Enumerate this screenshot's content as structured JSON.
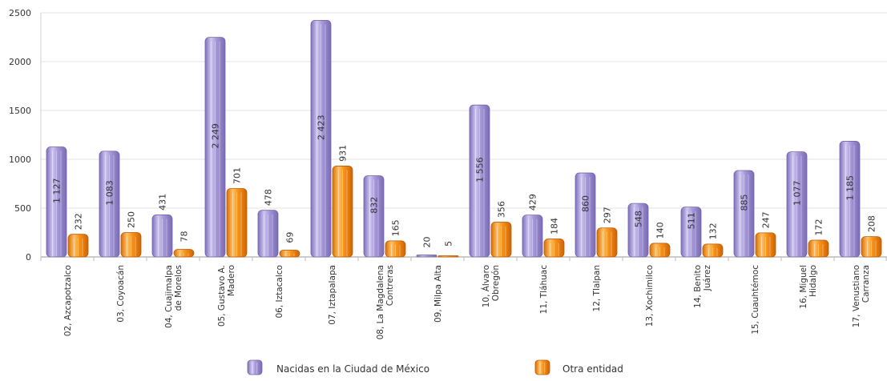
{
  "chart_data": {
    "type": "bar",
    "ylim": [
      0,
      2500
    ],
    "yticks": [
      "0",
      "500",
      "1000",
      "1500",
      "2000",
      "2500"
    ],
    "grid": true,
    "legend_position": "bottom",
    "categories": [
      [
        "02, Azcapotzalco"
      ],
      [
        "03, Coyoacán"
      ],
      [
        "04, Cuajimalpa",
        "de Morelos"
      ],
      [
        "05, Gustavo A.",
        "Madero"
      ],
      [
        "06, Iztacalco"
      ],
      [
        "07, Iztapalapa"
      ],
      [
        "08, La Magdalena",
        "Contreras"
      ],
      [
        "09, Milpa Alta"
      ],
      [
        "10, Álvaro",
        "Obregón"
      ],
      [
        "11, Tláhuac"
      ],
      [
        "12, Tlalpan"
      ],
      [
        "13, Xochimilco"
      ],
      [
        "14, Benito",
        "Juárez"
      ],
      [
        "15, Cuauhtémoc"
      ],
      [
        "16, Miguel",
        "Hidalgo"
      ],
      [
        "17, Venustiano",
        "Carranza"
      ]
    ],
    "series": [
      {
        "name": "Nacidas en la Ciudad de México",
        "color": "#9d8fd0",
        "values": [
          1127,
          1083,
          431,
          2249,
          478,
          2423,
          832,
          20,
          1556,
          429,
          860,
          548,
          511,
          885,
          1077,
          1185
        ],
        "labels": [
          "1 127",
          "1 083",
          "431",
          "2 249",
          "478",
          "2 423",
          "832",
          "20",
          "1 556",
          "429",
          "860",
          "548",
          "511",
          "885",
          "1 077",
          "1 185"
        ]
      },
      {
        "name": "Otra entidad",
        "color": "#f28a10",
        "values": [
          232,
          250,
          78,
          701,
          69,
          931,
          165,
          5,
          356,
          184,
          297,
          140,
          132,
          247,
          172,
          208
        ],
        "labels": [
          "232",
          "250",
          "78",
          "701",
          "69",
          "931",
          "165",
          "5",
          "356",
          "184",
          "297",
          "140",
          "132",
          "247",
          "172",
          "208"
        ]
      }
    ]
  }
}
